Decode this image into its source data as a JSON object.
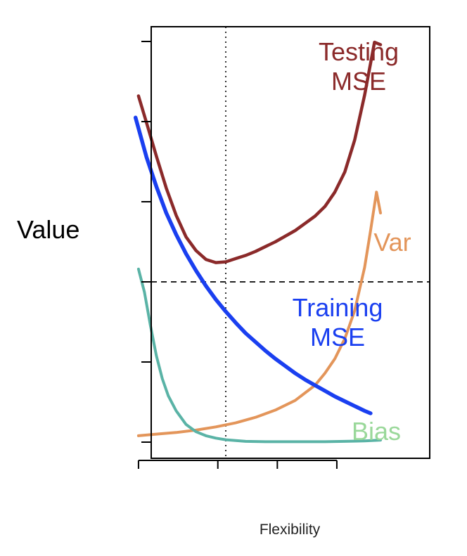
{
  "chart_data": {
    "type": "line",
    "title": "",
    "xlabel": "Flexibility",
    "ylabel": "Value",
    "xlim": [
      0,
      13
    ],
    "ylim": [
      -0.2,
      5.2
    ],
    "grid": false,
    "x_ticks": [
      0.6,
      4.6,
      7.6,
      10.6
    ],
    "x_tick_labels": [
      "",
      "",
      "",
      ""
    ],
    "y_ticks": [
      0,
      1,
      2,
      3,
      4,
      5
    ],
    "y_tick_labels": [
      "",
      "",
      "",
      "",
      "",
      ""
    ],
    "reference_lines": [
      {
        "orientation": "vertical",
        "value": 5.0,
        "style": "dotted",
        "color": "#333333"
      },
      {
        "orientation": "horizontal",
        "value": 2.0,
        "style": "dashed",
        "color": "#222222"
      }
    ],
    "series": [
      {
        "name": "Testing\nMSE",
        "color": "#8b2a2a",
        "x": [
          0.6,
          1.0,
          1.5,
          2.0,
          2.5,
          3.0,
          3.5,
          4.0,
          4.5,
          5.0,
          5.5,
          6.0,
          6.5,
          7.0,
          7.5,
          8.0,
          8.5,
          9.0,
          9.5,
          10.0,
          10.5,
          11.0,
          11.5,
          12.0,
          12.5,
          12.8
        ],
        "values": [
          4.32,
          3.99,
          3.57,
          3.17,
          2.83,
          2.56,
          2.39,
          2.28,
          2.24,
          2.25,
          2.29,
          2.33,
          2.38,
          2.44,
          2.5,
          2.57,
          2.64,
          2.73,
          2.82,
          2.94,
          3.12,
          3.37,
          3.77,
          4.33,
          4.99,
          4.96
        ]
      },
      {
        "name": "Var",
        "color": "#e3955a",
        "x": [
          0.6,
          1.5,
          2.5,
          3.5,
          4.5,
          5.5,
          6.5,
          7.5,
          8.5,
          9.5,
          10.0,
          10.5,
          11.0,
          11.5,
          12.0,
          12.3,
          12.6,
          12.8
        ],
        "values": [
          0.08,
          0.1,
          0.12,
          0.15,
          0.19,
          0.24,
          0.31,
          0.4,
          0.52,
          0.71,
          0.86,
          1.04,
          1.29,
          1.64,
          2.18,
          2.64,
          3.12,
          2.86
        ]
      },
      {
        "name": "Training\nMSE",
        "color": "#1a3ff0",
        "x": [
          0.45,
          1.0,
          1.5,
          2.0,
          2.5,
          3.0,
          3.5,
          4.0,
          4.5,
          5.0,
          5.5,
          6.0,
          6.5,
          7.0,
          7.5,
          8.0,
          8.5,
          9.0,
          9.5,
          10.0,
          10.5,
          11.0,
          11.5,
          12.0,
          12.3
        ],
        "values": [
          4.05,
          3.56,
          3.19,
          2.86,
          2.59,
          2.35,
          2.14,
          1.95,
          1.78,
          1.63,
          1.49,
          1.36,
          1.25,
          1.14,
          1.04,
          0.95,
          0.86,
          0.78,
          0.71,
          0.64,
          0.57,
          0.51,
          0.45,
          0.39,
          0.36
        ]
      },
      {
        "name": "Bias",
        "color": "#5ab3a6",
        "label_color": "#9ad89a",
        "x": [
          0.6,
          0.9,
          1.2,
          1.5,
          1.8,
          2.1,
          2.5,
          3.0,
          3.5,
          4.0,
          4.5,
          5.0,
          6.0,
          7.0,
          8.0,
          9.0,
          10.0,
          11.0,
          12.0,
          12.8
        ],
        "values": [
          2.16,
          1.87,
          1.46,
          1.08,
          0.79,
          0.58,
          0.39,
          0.22,
          0.13,
          0.08,
          0.05,
          0.03,
          0.01,
          0.005,
          0.005,
          0.005,
          0.005,
          0.01,
          0.015,
          0.025
        ]
      }
    ]
  }
}
